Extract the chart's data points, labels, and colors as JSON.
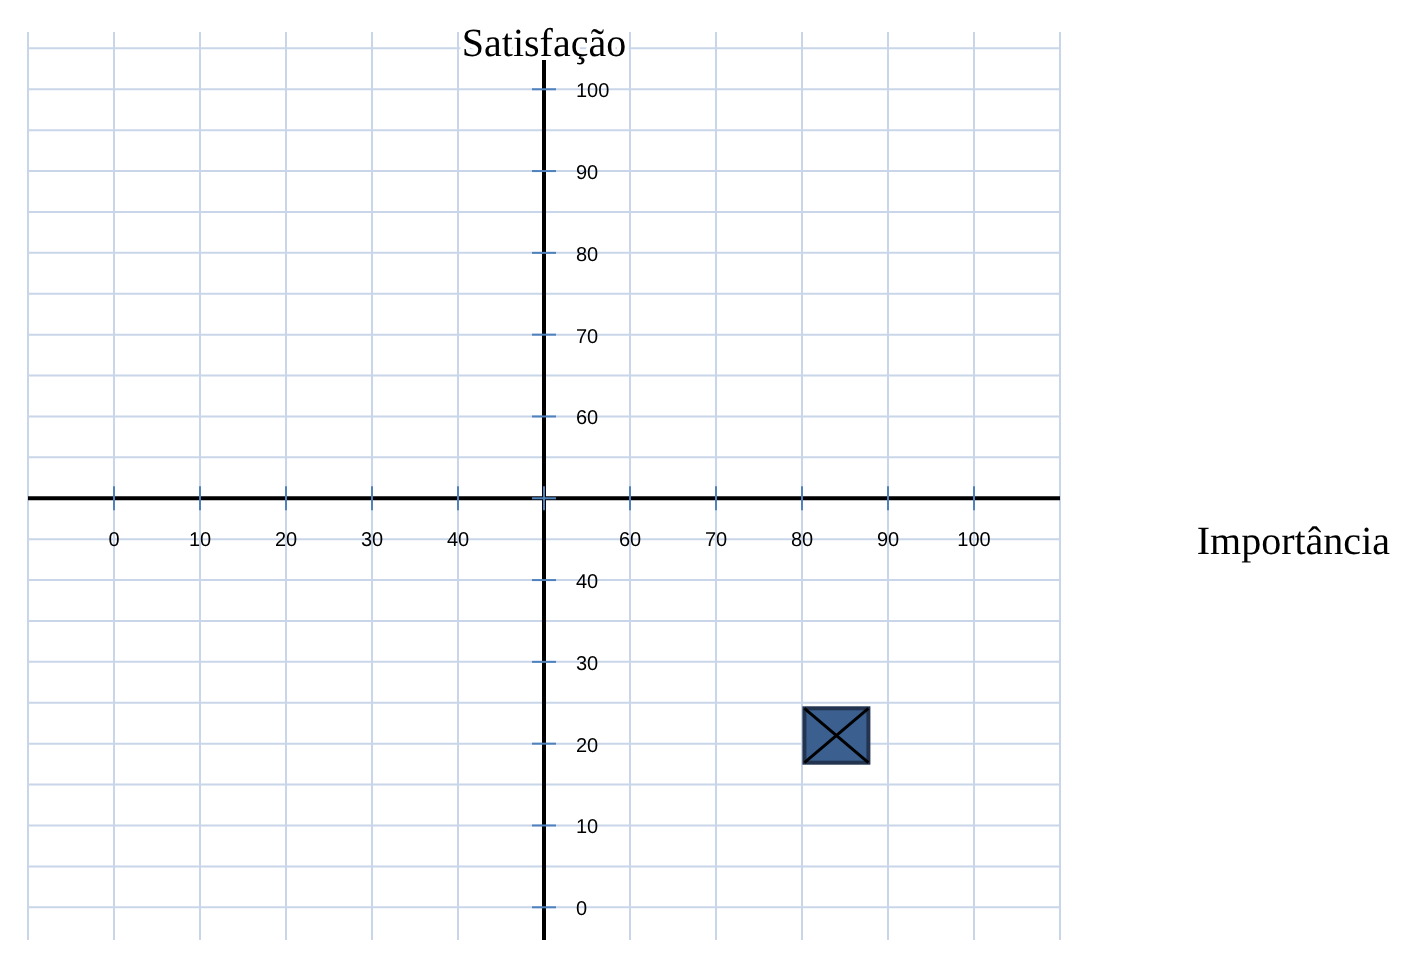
{
  "chart_data": {
    "type": "scatter",
    "xlabel": "Importância",
    "ylabel": "Satisfação",
    "x": [
      84
    ],
    "values": [
      21
    ],
    "color": "#3b5f8e",
    "marker": "square",
    "xlim": [
      -10,
      110
    ],
    "ylim": [
      -4,
      107
    ],
    "xticks": [
      0,
      10,
      20,
      30,
      40,
      {
        "value": 50,
        "label": null
      },
      60,
      70,
      80,
      90,
      100
    ],
    "yticks": [
      0,
      10,
      20,
      30,
      40,
      {
        "value": 50,
        "label": null
      },
      60,
      70,
      80,
      90,
      100
    ],
    "grid": true
  }
}
